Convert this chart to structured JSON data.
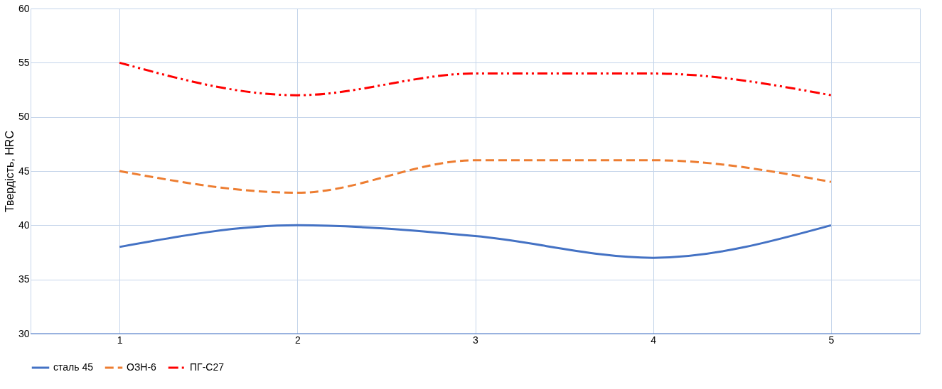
{
  "chart_data": {
    "type": "line",
    "ylabel": "Твердість, HRC",
    "categories": [
      "1",
      "2",
      "3",
      "4",
      "5"
    ],
    "series": [
      {
        "name": "сталь 45",
        "color": "#4472c4",
        "line_style": "solid",
        "values": [
          38,
          40,
          39,
          37,
          40
        ]
      },
      {
        "name": "ОЗН-6",
        "color": "#ed7d31",
        "line_style": "dashed",
        "values": [
          45,
          43,
          46,
          46,
          44
        ]
      },
      {
        "name": "ПГ-С27",
        "color": "#ff0000",
        "line_style": "dashdotdot",
        "values": [
          55,
          52,
          54,
          54,
          52
        ]
      }
    ],
    "ylim": [
      30,
      60
    ],
    "yticks": [
      30,
      35,
      40,
      45,
      50,
      55,
      60
    ],
    "grid": true,
    "legend": "bottom",
    "marker": "none"
  }
}
